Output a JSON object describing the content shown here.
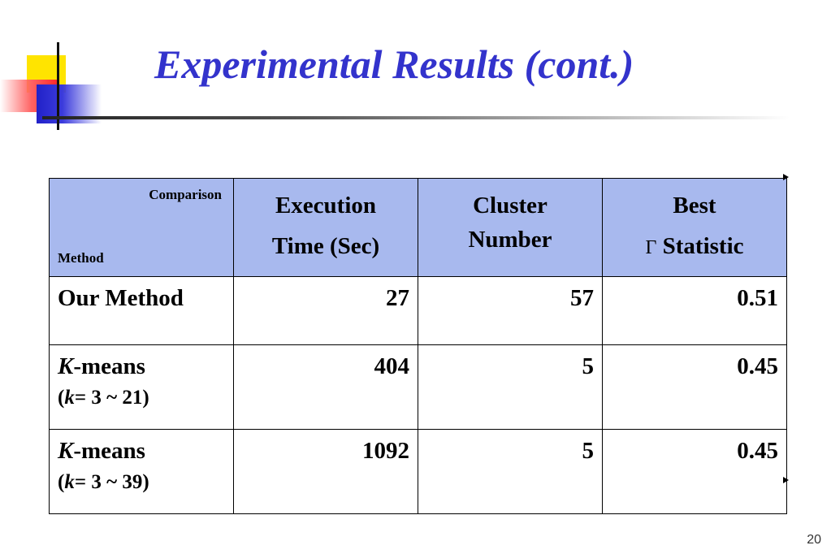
{
  "slide": {
    "title": "Experimental Results (cont.)",
    "page_number": "20"
  },
  "table": {
    "corner": {
      "top": "Comparison",
      "bottom": "Method"
    },
    "headers": [
      {
        "line1": "Execution",
        "line2": "Time (Sec)"
      },
      {
        "line1": "Cluster",
        "line2": "Number"
      },
      {
        "line1": "Best",
        "symbol": "Γ",
        "line2": "Statistic"
      }
    ],
    "rows": [
      {
        "method": "Our Method",
        "italic_prefix": "",
        "sub": "",
        "sub_italic": "",
        "sub_rest": "",
        "time": "27",
        "clusters": "57",
        "gamma": "0.51"
      },
      {
        "method": "-means",
        "italic_prefix": "K",
        "sub_open": "(",
        "sub_italic": "k",
        "sub_rest": "= 3 ~ 21)",
        "time": "404",
        "clusters": "5",
        "gamma": "0.45"
      },
      {
        "method": "-means",
        "italic_prefix": "K",
        "sub_open": "(",
        "sub_italic": "k",
        "sub_rest": "= 3 ~ 39)",
        "time": "1092",
        "clusters": "5",
        "gamma": "0.45"
      }
    ]
  },
  "colors": {
    "title": "#3333cc",
    "header_bg": "#a8b9ee"
  }
}
